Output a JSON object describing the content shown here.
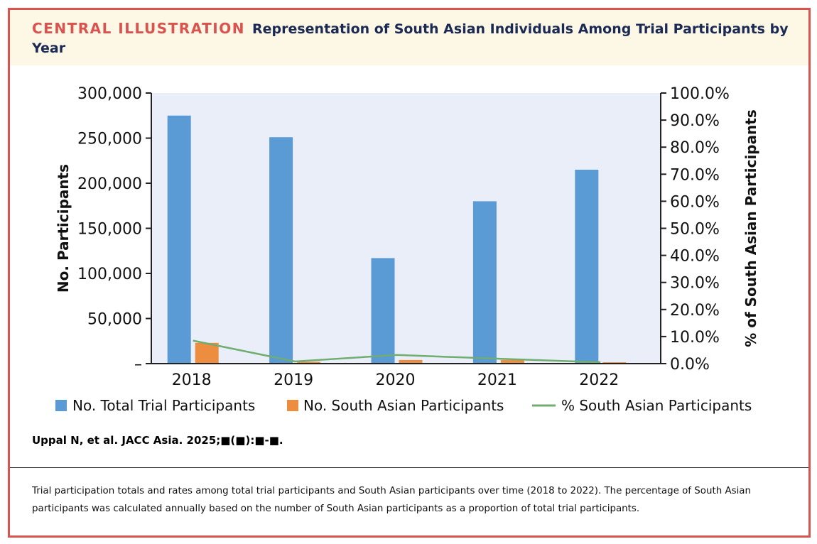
{
  "header": {
    "label": "CENTRAL ILLUSTRATION",
    "title": "Representation of South Asian Individuals Among Trial Participants by Year"
  },
  "citation": "Uppal N, et al. JACC Asia. 2025;■(■):■-■.",
  "caption": "Trial participation totals and rates among total trial participants and South Asian participants over time (2018 to 2022). The percentage of South Asian participants was calculated annually based on the number of South Asian participants as a proportion of total trial participants.",
  "colors": {
    "frame": "#d9534f",
    "header_bg": "#fdf8e6",
    "title": "#1b2a55",
    "plot_bg": "#e9eef8",
    "total": "#5b9bd5",
    "south_asian": "#ed8d3f",
    "percent": "#70ad70"
  },
  "chart_data": {
    "type": "bar",
    "categories": [
      "2018",
      "2019",
      "2020",
      "2021",
      "2022"
    ],
    "series": [
      {
        "name": "No. Total Trial Participants",
        "type": "bar",
        "axis": "left",
        "values": [
          275000,
          251000,
          117000,
          180000,
          215000
        ]
      },
      {
        "name": "No. South Asian Participants",
        "type": "bar",
        "axis": "left",
        "values": [
          23000,
          2000,
          4000,
          4000,
          1500
        ]
      },
      {
        "name": "% South Asian Participants",
        "type": "line",
        "axis": "right",
        "values": [
          8.5,
          0.8,
          3.2,
          1.8,
          0.5
        ]
      }
    ],
    "ylabel": "No. Participants",
    "y2label": "% of South Asian Participants",
    "ylim": [
      0,
      300000
    ],
    "y2lim": [
      0,
      100
    ],
    "yticks": [
      "–",
      "50,000",
      "100,000",
      "150,000",
      "200,000",
      "250,000",
      "300,000"
    ],
    "y2ticks": [
      "0.0%",
      "10.0%",
      "20.0%",
      "30.0%",
      "40.0%",
      "50.0%",
      "60.0%",
      "70.0%",
      "80.0%",
      "90.0%",
      "100.0%"
    ],
    "legend_position": "bottom",
    "grid": false
  }
}
